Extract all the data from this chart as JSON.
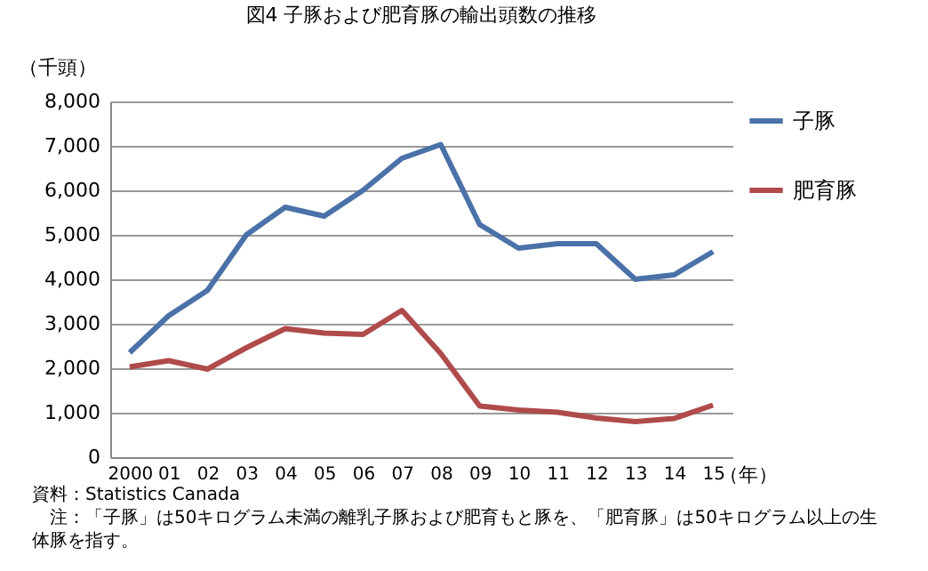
{
  "chart_data": {
    "type": "line",
    "title": "図4  子豚および肥育豚の輸出頭数の推移",
    "ylabel": "（千頭）",
    "xlabel": "（年）",
    "categories": [
      "2000",
      "01",
      "02",
      "03",
      "04",
      "05",
      "06",
      "07",
      "08",
      "09",
      "10",
      "11",
      "12",
      "13",
      "14",
      "15"
    ],
    "series": [
      {
        "name": "子豚",
        "color": "#4a72a8",
        "values": [
          2350,
          3180,
          3750,
          5000,
          5620,
          5420,
          6000,
          6720,
          7030,
          5230,
          4700,
          4800,
          4800,
          4000,
          4100,
          4620
        ]
      },
      {
        "name": "肥育豚",
        "color": "#b04b4b",
        "values": [
          2030,
          2170,
          1980,
          2460,
          2890,
          2790,
          2760,
          3300,
          2330,
          1150,
          1060,
          1010,
          880,
          800,
          870,
          1170
        ]
      }
    ],
    "ylim": [
      0,
      8000
    ],
    "yticks": [
      0,
      {
        "value": 1000,
        "label": "1,000"
      },
      {
        "value": 2000,
        "label": "2,000"
      },
      {
        "value": 3000,
        "label": "3,000"
      },
      {
        "value": 4000,
        "label": "4,000"
      },
      {
        "value": 5000,
        "label": "5,000"
      },
      {
        "value": 6000,
        "label": "6,000"
      },
      {
        "value": 7000,
        "label": "7,000"
      },
      {
        "value": 8000,
        "label": "8,000"
      }
    ],
    "grid": "y",
    "legend": "right",
    "line_style": "solid",
    "annotations": [
      "資料：Statistics Canada",
      "　注：「子豚」は50キログラム未満の離乳子豚および肥育もと豚を、「肥育豚」は50キログラム以上の生体豚を指す。"
    ]
  }
}
